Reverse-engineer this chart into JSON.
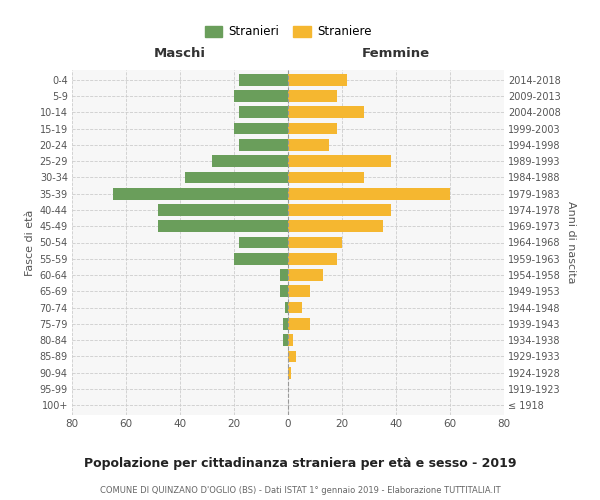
{
  "age_groups": [
    "100+",
    "95-99",
    "90-94",
    "85-89",
    "80-84",
    "75-79",
    "70-74",
    "65-69",
    "60-64",
    "55-59",
    "50-54",
    "45-49",
    "40-44",
    "35-39",
    "30-34",
    "25-29",
    "20-24",
    "15-19",
    "10-14",
    "5-9",
    "0-4"
  ],
  "birth_years": [
    "≤ 1918",
    "1919-1923",
    "1924-1928",
    "1929-1933",
    "1934-1938",
    "1939-1943",
    "1944-1948",
    "1949-1953",
    "1954-1958",
    "1959-1963",
    "1964-1968",
    "1969-1973",
    "1974-1978",
    "1979-1983",
    "1984-1988",
    "1989-1993",
    "1994-1998",
    "1999-2003",
    "2004-2008",
    "2009-2013",
    "2014-2018"
  ],
  "maschi": [
    0,
    0,
    0,
    0,
    2,
    2,
    1,
    3,
    3,
    20,
    18,
    48,
    48,
    65,
    38,
    28,
    18,
    20,
    18,
    20,
    18
  ],
  "femmine": [
    0,
    0,
    1,
    3,
    2,
    8,
    5,
    8,
    13,
    18,
    20,
    35,
    38,
    60,
    28,
    38,
    15,
    18,
    28,
    18,
    22
  ],
  "maschi_color": "#6a9e5b",
  "femmine_color": "#f5b730",
  "background_color": "#ffffff",
  "grid_color": "#cccccc",
  "title": "Popolazione per cittadinanza straniera per età e sesso - 2019",
  "subtitle": "COMUNE DI QUINZANO D'OGLIO (BS) - Dati ISTAT 1° gennaio 2019 - Elaborazione TUTTITALIA.IT",
  "xlabel_maschi": "Maschi",
  "xlabel_femmine": "Femmine",
  "ylabel_left": "Fasce di età",
  "ylabel_right": "Anni di nascita",
  "legend_maschi": "Stranieri",
  "legend_femmine": "Straniere",
  "xlim": 80,
  "ax_facecolor": "#f7f7f7"
}
